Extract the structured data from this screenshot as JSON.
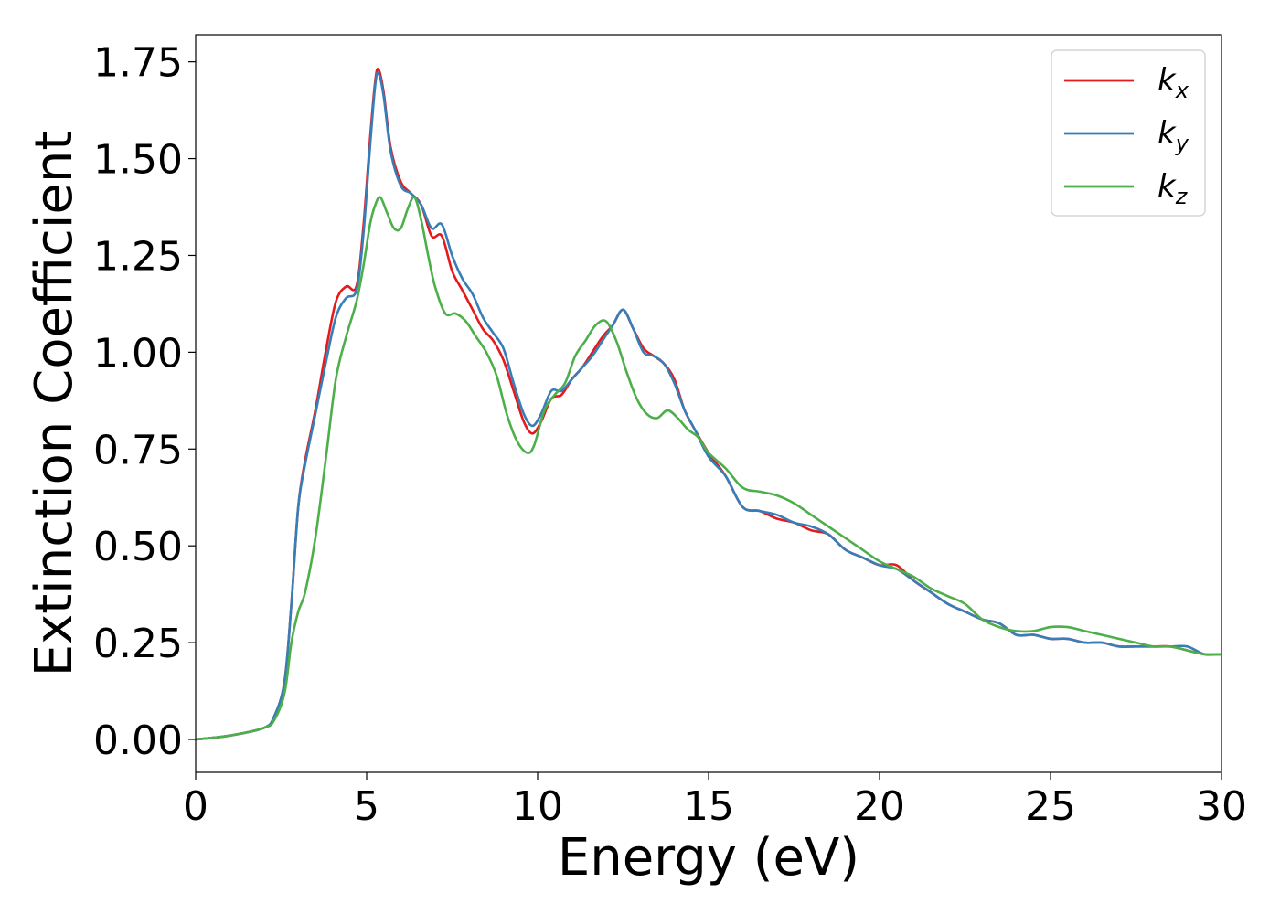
{
  "chart_data": {
    "type": "line",
    "xlabel": "Energy (eV)",
    "ylabel": "Extinction Coefficient",
    "xlim": [
      0,
      30
    ],
    "ylim": [
      -0.085,
      1.82
    ],
    "xticks": [
      0,
      5,
      10,
      15,
      20,
      25,
      30
    ],
    "xtick_labels": [
      "0",
      "5",
      "10",
      "15",
      "20",
      "25",
      "30"
    ],
    "yticks": [
      0.0,
      0.25,
      0.5,
      0.75,
      1.0,
      1.25,
      1.5,
      1.75
    ],
    "ytick_labels": [
      "0.00",
      "0.25",
      "0.50",
      "0.75",
      "1.00",
      "1.25",
      "1.50",
      "1.75"
    ],
    "grid": false,
    "legend_position": "top-right",
    "series": [
      {
        "name": "k",
        "sub": "x",
        "color": "#e41a1c",
        "x": [
          0,
          1,
          2,
          2.3,
          2.6,
          2.8,
          3.0,
          3.2,
          3.5,
          3.8,
          4.1,
          4.4,
          4.7,
          4.9,
          5.1,
          5.25,
          5.35,
          5.5,
          5.7,
          6.0,
          6.3,
          6.6,
          6.9,
          7.2,
          7.5,
          7.8,
          8.1,
          8.4,
          8.7,
          9.0,
          9.3,
          9.6,
          9.85,
          10.1,
          10.4,
          10.7,
          11.0,
          11.3,
          11.6,
          11.9,
          12.2,
          12.5,
          12.8,
          13.1,
          13.4,
          13.7,
          14.0,
          14.3,
          14.6,
          15.0,
          15.5,
          16.0,
          16.5,
          17.0,
          17.5,
          18.0,
          18.5,
          19.0,
          19.5,
          20.0,
          20.5,
          21.0,
          21.5,
          22.0,
          22.5,
          23.0,
          23.5,
          24.0,
          24.5,
          25.0,
          25.5,
          26.0,
          26.5,
          27.0,
          27.5,
          28.0,
          28.5,
          29.0,
          29.5,
          30.0
        ],
        "y": [
          0.0,
          0.01,
          0.03,
          0.06,
          0.15,
          0.35,
          0.6,
          0.72,
          0.85,
          1.0,
          1.13,
          1.17,
          1.17,
          1.32,
          1.55,
          1.7,
          1.73,
          1.67,
          1.53,
          1.44,
          1.41,
          1.38,
          1.3,
          1.3,
          1.21,
          1.16,
          1.11,
          1.06,
          1.03,
          0.98,
          0.9,
          0.82,
          0.79,
          0.82,
          0.88,
          0.89,
          0.93,
          0.96,
          1.0,
          1.04,
          1.07,
          1.11,
          1.06,
          1.01,
          0.99,
          0.97,
          0.93,
          0.85,
          0.8,
          0.74,
          0.68,
          0.6,
          0.59,
          0.57,
          0.56,
          0.54,
          0.53,
          0.49,
          0.47,
          0.45,
          0.45,
          0.41,
          0.38,
          0.35,
          0.33,
          0.31,
          0.3,
          0.27,
          0.27,
          0.26,
          0.26,
          0.25,
          0.25,
          0.24,
          0.24,
          0.24,
          0.24,
          0.23,
          0.22,
          0.22
        ]
      },
      {
        "name": "k",
        "sub": "y",
        "color": "#377eb8",
        "x": [
          0,
          1,
          2,
          2.3,
          2.6,
          2.8,
          3.0,
          3.2,
          3.5,
          3.8,
          4.1,
          4.4,
          4.7,
          4.9,
          5.1,
          5.25,
          5.35,
          5.5,
          5.7,
          6.0,
          6.3,
          6.6,
          6.9,
          7.2,
          7.5,
          7.8,
          8.1,
          8.4,
          8.7,
          9.0,
          9.3,
          9.6,
          9.85,
          10.1,
          10.4,
          10.7,
          11.0,
          11.3,
          11.6,
          11.9,
          12.2,
          12.5,
          12.8,
          13.1,
          13.4,
          13.7,
          14.0,
          14.3,
          14.6,
          15.0,
          15.5,
          16.0,
          16.5,
          17.0,
          17.5,
          18.0,
          18.5,
          19.0,
          19.5,
          20.0,
          20.5,
          21.0,
          21.5,
          22.0,
          22.5,
          23.0,
          23.5,
          24.0,
          24.5,
          25.0,
          25.5,
          26.0,
          26.5,
          27.0,
          27.5,
          28.0,
          28.5,
          29.0,
          29.5,
          30.0
        ],
        "y": [
          0.0,
          0.01,
          0.03,
          0.06,
          0.15,
          0.35,
          0.6,
          0.71,
          0.84,
          0.97,
          1.09,
          1.14,
          1.16,
          1.3,
          1.53,
          1.69,
          1.72,
          1.66,
          1.52,
          1.43,
          1.41,
          1.38,
          1.32,
          1.33,
          1.25,
          1.19,
          1.15,
          1.09,
          1.05,
          1.01,
          0.92,
          0.84,
          0.81,
          0.84,
          0.9,
          0.9,
          0.93,
          0.96,
          0.99,
          1.03,
          1.07,
          1.11,
          1.06,
          1.0,
          0.99,
          0.97,
          0.92,
          0.85,
          0.8,
          0.73,
          0.68,
          0.6,
          0.59,
          0.58,
          0.56,
          0.55,
          0.53,
          0.49,
          0.47,
          0.45,
          0.44,
          0.41,
          0.38,
          0.35,
          0.33,
          0.31,
          0.3,
          0.27,
          0.27,
          0.26,
          0.26,
          0.25,
          0.25,
          0.24,
          0.24,
          0.24,
          0.24,
          0.24,
          0.22,
          0.22
        ]
      },
      {
        "name": "k",
        "sub": "z",
        "color": "#4daf4a",
        "x": [
          0,
          1,
          2,
          2.3,
          2.6,
          2.8,
          3.0,
          3.2,
          3.5,
          3.8,
          4.1,
          4.4,
          4.7,
          4.9,
          5.1,
          5.25,
          5.4,
          5.6,
          5.8,
          6.0,
          6.2,
          6.4,
          6.6,
          6.8,
          7.0,
          7.3,
          7.6,
          7.9,
          8.2,
          8.5,
          8.8,
          9.1,
          9.4,
          9.7,
          9.9,
          10.2,
          10.5,
          10.8,
          11.1,
          11.4,
          11.7,
          12.0,
          12.3,
          12.6,
          12.9,
          13.2,
          13.5,
          13.8,
          14.1,
          14.4,
          14.7,
          15.0,
          15.5,
          16.0,
          16.5,
          17.0,
          17.5,
          18.0,
          18.5,
          19.0,
          19.5,
          20.0,
          20.5,
          21.0,
          21.5,
          22.0,
          22.5,
          23.0,
          23.5,
          24.0,
          24.5,
          25.0,
          25.5,
          26.0,
          26.5,
          27.0,
          27.5,
          28.0,
          28.5,
          29.0,
          29.5,
          30.0
        ],
        "y": [
          0.0,
          0.01,
          0.03,
          0.05,
          0.12,
          0.25,
          0.33,
          0.38,
          0.52,
          0.72,
          0.93,
          1.04,
          1.13,
          1.22,
          1.33,
          1.38,
          1.4,
          1.36,
          1.32,
          1.32,
          1.37,
          1.4,
          1.34,
          1.25,
          1.17,
          1.1,
          1.1,
          1.08,
          1.04,
          1.0,
          0.94,
          0.84,
          0.77,
          0.74,
          0.76,
          0.85,
          0.89,
          0.92,
          0.99,
          1.03,
          1.07,
          1.08,
          1.03,
          0.95,
          0.88,
          0.84,
          0.83,
          0.85,
          0.83,
          0.8,
          0.78,
          0.74,
          0.7,
          0.65,
          0.64,
          0.63,
          0.61,
          0.58,
          0.55,
          0.52,
          0.49,
          0.46,
          0.44,
          0.42,
          0.39,
          0.37,
          0.35,
          0.31,
          0.29,
          0.28,
          0.28,
          0.29,
          0.29,
          0.28,
          0.27,
          0.26,
          0.25,
          0.24,
          0.24,
          0.23,
          0.22,
          0.22
        ]
      }
    ]
  }
}
